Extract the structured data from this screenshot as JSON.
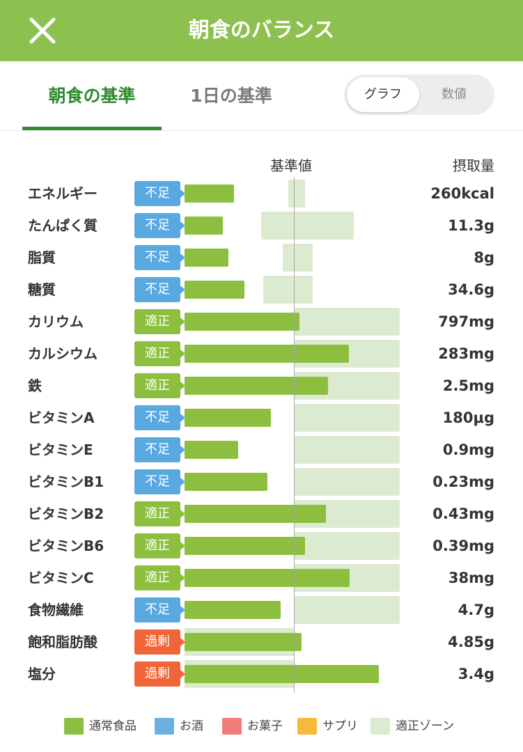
{
  "header": {
    "title": "朝食のバランス",
    "close_icon": "close-icon",
    "color": "#8dc14f"
  },
  "tabs": [
    {
      "label": "朝食の基準",
      "active": true
    },
    {
      "label": "1日の基準",
      "active": false
    }
  ],
  "view_toggle": {
    "options": [
      "グラフ",
      "数値"
    ],
    "selected": "グラフ"
  },
  "columns": {
    "standard": "基準値",
    "intake": "摂取量"
  },
  "status_colors": {
    "不足": "#5aa8e0",
    "適正": "#8cbf3f",
    "過剰": "#f0663a"
  },
  "chart_data": {
    "type": "bar",
    "standard_ratio": 1.0,
    "zone_color": "#dcead0",
    "bar_color": "#8cbf3f",
    "rows": [
      {
        "name": "エネルギー",
        "status": "不足",
        "intake": "260kcal",
        "ratio": 0.45,
        "zone": [
          0.95,
          1.1
        ]
      },
      {
        "name": "たんぱく質",
        "status": "不足",
        "intake": "11.3g",
        "ratio": 0.35,
        "zone": [
          0.7,
          1.55
        ]
      },
      {
        "name": "脂質",
        "status": "不足",
        "intake": "8g",
        "ratio": 0.4,
        "zone": [
          0.9,
          1.17
        ]
      },
      {
        "name": "糖質",
        "status": "不足",
        "intake": "34.6g",
        "ratio": 0.55,
        "zone": [
          0.72,
          1.17
        ]
      },
      {
        "name": "カリウム",
        "status": "適正",
        "intake": "797mg",
        "ratio": 1.05,
        "zone": [
          1.0,
          1.97
        ]
      },
      {
        "name": "カルシウム",
        "status": "適正",
        "intake": "283mg",
        "ratio": 1.5,
        "zone": [
          1.0,
          1.97
        ]
      },
      {
        "name": "鉄",
        "status": "適正",
        "intake": "2.5mg",
        "ratio": 1.31,
        "zone": [
          1.0,
          1.97
        ]
      },
      {
        "name": "ビタミンA",
        "status": "不足",
        "intake": "180μg",
        "ratio": 0.79,
        "zone": [
          1.0,
          1.97
        ]
      },
      {
        "name": "ビタミンE",
        "status": "不足",
        "intake": "0.9mg",
        "ratio": 0.49,
        "zone": [
          1.0,
          1.97
        ]
      },
      {
        "name": "ビタミンB1",
        "status": "不足",
        "intake": "0.23mg",
        "ratio": 0.76,
        "zone": [
          1.0,
          1.97
        ]
      },
      {
        "name": "ビタミンB2",
        "status": "適正",
        "intake": "0.43mg",
        "ratio": 1.29,
        "zone": [
          1.0,
          1.97
        ]
      },
      {
        "name": "ビタミンB6",
        "status": "適正",
        "intake": "0.39mg",
        "ratio": 1.1,
        "zone": [
          1.0,
          1.97
        ]
      },
      {
        "name": "ビタミンC",
        "status": "適正",
        "intake": "38mg",
        "ratio": 1.51,
        "zone": [
          1.0,
          1.97
        ]
      },
      {
        "name": "食物繊維",
        "status": "不足",
        "intake": "4.7g",
        "ratio": 0.88,
        "zone": [
          1.0,
          1.97
        ]
      },
      {
        "name": "飽和脂肪酸",
        "status": "過剰",
        "intake": "4.85g",
        "ratio": 1.07,
        "zone": [
          0.0,
          1.0
        ]
      },
      {
        "name": "塩分",
        "status": "過剰",
        "intake": "3.4g",
        "ratio": 1.78,
        "zone": [
          0.0,
          1.0
        ]
      }
    ]
  },
  "legend": [
    {
      "label": "通常食品",
      "color": "#8cbf3f"
    },
    {
      "label": "お酒",
      "color": "#6cb0e0"
    },
    {
      "label": "お菓子",
      "color": "#f27b7b"
    },
    {
      "label": "サプリ",
      "color": "#f6b93b"
    },
    {
      "label": "適正ゾーン",
      "color": "#dcead0"
    }
  ]
}
